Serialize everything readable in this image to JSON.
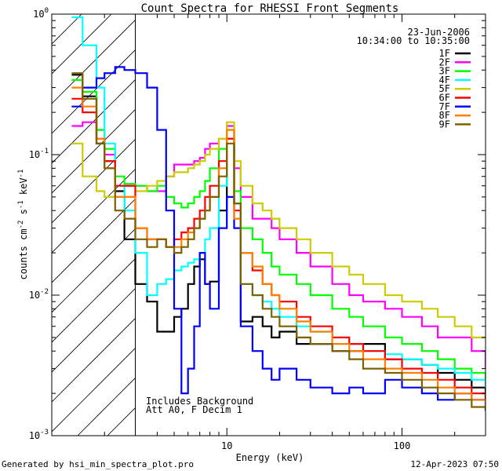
{
  "chart_data": {
    "type": "line",
    "title": "Count Spectra for RHESSI Front Segments",
    "xlabel": "Energy (keV)",
    "ylabel": "counts cm^-2 s^-1 keV^-1",
    "ylabel_parts": {
      "a": "counts cm",
      "sup1": "-2",
      "b": " s",
      "sup2": "-1",
      "c": " keV",
      "sup3": "-1"
    },
    "xscale": "log",
    "yscale": "log",
    "xlim": [
      1.0,
      300.0
    ],
    "ylim": [
      0.001,
      1.0
    ],
    "x_tick_labels": [
      "10",
      "100"
    ],
    "y_tick_labels": [
      {
        "base": "10",
        "exp": "0",
        "value": 1.0
      },
      {
        "base": "10",
        "exp": "-1",
        "value": 0.1
      },
      {
        "base": "10",
        "exp": "-2",
        "value": 0.01
      },
      {
        "base": "10",
        "exp": "-3",
        "value": 0.001
      }
    ],
    "date": "23-Jun-2006",
    "time_range": "10:34:00 to 10:35:00",
    "annotations": [
      "Includes Background",
      "Att A0, F Decim 1"
    ],
    "shaded_region": {
      "x_min": 1.0,
      "x_max": 3.0,
      "pattern": "diagonal hatch"
    },
    "legend_position": "top-right",
    "series": [
      {
        "name": "1F",
        "color": "#000000",
        "x": [
          1.3,
          1.5,
          1.8,
          2.0,
          2.3,
          2.6,
          3.0,
          3.5,
          4.0,
          4.5,
          5.0,
          5.5,
          6.0,
          6.5,
          7.0,
          7.5,
          8.0,
          9.0,
          10.0,
          11.0,
          12.0,
          14.0,
          16.0,
          18.0,
          20.0,
          25.0,
          30.0,
          40.0,
          50.0,
          60.0,
          80.0,
          100.0,
          130.0,
          160.0,
          200.0,
          250.0,
          300.0
        ],
        "y": [
          0.37,
          0.26,
          0.12,
          0.09,
          0.055,
          0.025,
          0.012,
          0.009,
          0.0055,
          0.0055,
          0.007,
          0.008,
          0.012,
          0.016,
          0.018,
          0.012,
          0.0125,
          0.04,
          0.13,
          0.045,
          0.0065,
          0.007,
          0.006,
          0.005,
          0.0055,
          0.0045,
          0.0045,
          0.004,
          0.004,
          0.0045,
          0.0035,
          0.0035,
          0.0032,
          0.0028,
          0.0025,
          0.0022,
          0.0018
        ]
      },
      {
        "name": "2F",
        "color": "#ff00ff",
        "x": [
          1.3,
          1.5,
          1.8,
          2.0,
          2.3,
          2.6,
          3.0,
          3.5,
          4.0,
          4.5,
          5.0,
          5.5,
          6.0,
          6.5,
          7.0,
          7.5,
          8.0,
          9.0,
          10.0,
          11.0,
          12.0,
          14.0,
          16.0,
          18.0,
          20.0,
          25.0,
          30.0,
          40.0,
          50.0,
          60.0,
          80.0,
          100.0,
          130.0,
          160.0,
          200.0,
          250.0,
          300.0
        ],
        "y": [
          0.16,
          0.17,
          0.15,
          0.1,
          0.06,
          0.06,
          0.06,
          0.055,
          0.055,
          0.07,
          0.085,
          0.085,
          0.085,
          0.09,
          0.095,
          0.11,
          0.12,
          0.13,
          0.16,
          0.08,
          0.05,
          0.035,
          0.035,
          0.03,
          0.025,
          0.02,
          0.016,
          0.012,
          0.01,
          0.009,
          0.008,
          0.007,
          0.006,
          0.005,
          0.005,
          0.004,
          0.003
        ]
      },
      {
        "name": "3F",
        "color": "#00ff00",
        "x": [
          1.3,
          1.5,
          1.8,
          2.0,
          2.3,
          2.6,
          3.0,
          3.5,
          4.0,
          4.5,
          5.0,
          5.5,
          6.0,
          6.5,
          7.0,
          7.5,
          8.0,
          9.0,
          10.0,
          11.0,
          12.0,
          14.0,
          16.0,
          18.0,
          20.0,
          25.0,
          30.0,
          40.0,
          50.0,
          60.0,
          80.0,
          100.0,
          130.0,
          160.0,
          200.0,
          250.0,
          300.0
        ],
        "y": [
          0.34,
          0.28,
          0.15,
          0.11,
          0.07,
          0.062,
          0.06,
          0.055,
          0.06,
          0.05,
          0.045,
          0.042,
          0.045,
          0.05,
          0.055,
          0.065,
          0.08,
          0.11,
          0.15,
          0.055,
          0.03,
          0.025,
          0.02,
          0.016,
          0.014,
          0.012,
          0.01,
          0.008,
          0.007,
          0.006,
          0.005,
          0.0045,
          0.004,
          0.0035,
          0.003,
          0.0028,
          0.0025
        ]
      },
      {
        "name": "4F",
        "color": "#00ffff",
        "x": [
          1.3,
          1.5,
          1.8,
          2.0,
          2.3,
          2.6,
          3.0,
          3.5,
          4.0,
          4.5,
          5.0,
          5.5,
          6.0,
          6.5,
          7.0,
          7.5,
          8.0,
          9.0,
          10.0,
          11.0,
          12.0,
          14.0,
          16.0,
          18.0,
          20.0,
          25.0,
          30.0,
          40.0,
          50.0,
          60.0,
          80.0,
          100.0,
          130.0,
          160.0,
          200.0,
          250.0,
          300.0
        ],
        "y": [
          0.95,
          0.6,
          0.3,
          0.12,
          0.06,
          0.04,
          0.02,
          0.01,
          0.012,
          0.013,
          0.015,
          0.016,
          0.017,
          0.018,
          0.02,
          0.025,
          0.03,
          0.06,
          0.13,
          0.045,
          0.012,
          0.01,
          0.009,
          0.008,
          0.007,
          0.006,
          0.0055,
          0.005,
          0.0045,
          0.004,
          0.0038,
          0.0035,
          0.0032,
          0.003,
          0.0028,
          0.0025,
          0.0022
        ]
      },
      {
        "name": "5F",
        "color": "#cccc00",
        "x": [
          1.3,
          1.5,
          1.8,
          2.0,
          2.3,
          2.6,
          3.0,
          3.5,
          4.0,
          4.5,
          5.0,
          5.5,
          6.0,
          6.5,
          7.0,
          7.5,
          8.0,
          9.0,
          10.0,
          11.0,
          12.0,
          14.0,
          16.0,
          18.0,
          20.0,
          25.0,
          30.0,
          40.0,
          50.0,
          60.0,
          80.0,
          100.0,
          130.0,
          160.0,
          200.0,
          250.0,
          300.0
        ],
        "y": [
          0.12,
          0.07,
          0.055,
          0.05,
          0.05,
          0.05,
          0.055,
          0.06,
          0.065,
          0.07,
          0.075,
          0.075,
          0.08,
          0.085,
          0.09,
          0.1,
          0.11,
          0.13,
          0.17,
          0.09,
          0.06,
          0.045,
          0.04,
          0.035,
          0.03,
          0.025,
          0.02,
          0.016,
          0.014,
          0.012,
          0.01,
          0.009,
          0.008,
          0.007,
          0.006,
          0.005,
          0.005
        ]
      },
      {
        "name": "6F",
        "color": "#ff0000",
        "x": [
          1.3,
          1.5,
          1.8,
          2.0,
          2.3,
          2.6,
          3.0,
          3.5,
          4.0,
          4.5,
          5.0,
          5.5,
          6.0,
          6.5,
          7.0,
          7.5,
          8.0,
          9.0,
          10.0,
          11.0,
          12.0,
          14.0,
          16.0,
          18.0,
          20.0,
          25.0,
          30.0,
          40.0,
          50.0,
          60.0,
          80.0,
          100.0,
          130.0,
          160.0,
          200.0,
          250.0,
          300.0
        ],
        "y": [
          0.25,
          0.2,
          0.13,
          0.09,
          0.06,
          0.06,
          0.03,
          0.025,
          0.025,
          0.022,
          0.025,
          0.028,
          0.03,
          0.035,
          0.04,
          0.05,
          0.06,
          0.09,
          0.13,
          0.04,
          0.02,
          0.015,
          0.012,
          0.01,
          0.009,
          0.007,
          0.006,
          0.005,
          0.0045,
          0.004,
          0.0035,
          0.003,
          0.0028,
          0.0025,
          0.0022,
          0.002,
          0.0018
        ]
      },
      {
        "name": "7F",
        "color": "#0000ff",
        "x": [
          1.3,
          1.5,
          1.8,
          2.0,
          2.3,
          2.6,
          3.0,
          3.5,
          4.0,
          4.5,
          5.0,
          5.5,
          6.0,
          6.5,
          7.0,
          7.5,
          8.0,
          9.0,
          10.0,
          11.0,
          12.0,
          14.0,
          16.0,
          18.0,
          20.0,
          25.0,
          30.0,
          40.0,
          50.0,
          60.0,
          80.0,
          100.0,
          130.0,
          160.0,
          200.0,
          250.0,
          300.0
        ],
        "y": [
          0.22,
          0.3,
          0.35,
          0.38,
          0.42,
          0.4,
          0.38,
          0.3,
          0.15,
          0.04,
          0.008,
          0.002,
          0.003,
          0.006,
          0.02,
          0.012,
          0.008,
          0.03,
          0.05,
          0.03,
          0.006,
          0.004,
          0.003,
          0.0025,
          0.003,
          0.0025,
          0.0022,
          0.002,
          0.0022,
          0.002,
          0.0025,
          0.0022,
          0.002,
          0.0018,
          0.002,
          0.0018,
          0.0015
        ]
      },
      {
        "name": "8F",
        "color": "#ff7f00",
        "x": [
          1.3,
          1.5,
          1.8,
          2.0,
          2.3,
          2.6,
          3.0,
          3.5,
          4.0,
          4.5,
          5.0,
          5.5,
          6.0,
          6.5,
          7.0,
          7.5,
          8.0,
          9.0,
          10.0,
          11.0,
          12.0,
          14.0,
          16.0,
          18.0,
          20.0,
          25.0,
          30.0,
          40.0,
          50.0,
          60.0,
          80.0,
          100.0,
          130.0,
          160.0,
          200.0,
          250.0,
          300.0
        ],
        "y": [
          0.3,
          0.22,
          0.13,
          0.08,
          0.05,
          0.05,
          0.03,
          0.025,
          0.025,
          0.022,
          0.022,
          0.025,
          0.028,
          0.03,
          0.035,
          0.04,
          0.05,
          0.08,
          0.15,
          0.035,
          0.02,
          0.016,
          0.012,
          0.01,
          0.008,
          0.0065,
          0.0055,
          0.0045,
          0.004,
          0.0035,
          0.003,
          0.0028,
          0.0025,
          0.0022,
          0.002,
          0.0018,
          0.0016
        ]
      },
      {
        "name": "9F",
        "color": "#7f6000",
        "x": [
          1.3,
          1.5,
          1.8,
          2.0,
          2.3,
          2.6,
          3.0,
          3.5,
          4.0,
          4.5,
          5.0,
          5.5,
          6.0,
          6.5,
          7.0,
          7.5,
          8.0,
          9.0,
          10.0,
          11.0,
          12.0,
          14.0,
          16.0,
          18.0,
          20.0,
          25.0,
          30.0,
          40.0,
          50.0,
          60.0,
          80.0,
          100.0,
          130.0,
          160.0,
          200.0,
          250.0,
          300.0
        ],
        "y": [
          0.38,
          0.25,
          0.12,
          0.08,
          0.04,
          0.035,
          0.025,
          0.022,
          0.025,
          0.022,
          0.02,
          0.022,
          0.025,
          0.03,
          0.035,
          0.04,
          0.05,
          0.07,
          0.12,
          0.045,
          0.012,
          0.01,
          0.008,
          0.007,
          0.006,
          0.005,
          0.0045,
          0.004,
          0.0035,
          0.003,
          0.0028,
          0.0025,
          0.0022,
          0.002,
          0.0018,
          0.0016,
          0.0015
        ]
      }
    ]
  },
  "footer": {
    "generated_by": "Generated by hsi_min_spectra_plot.pro",
    "timestamp": "12-Apr-2023 07:50"
  }
}
